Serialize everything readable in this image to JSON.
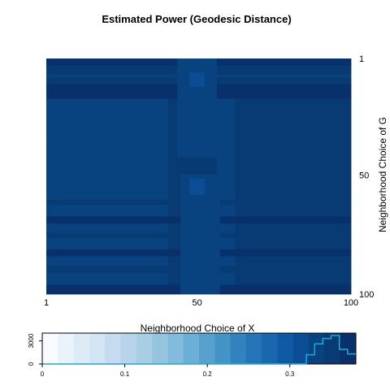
{
  "chart_data": {
    "type": "heatmap",
    "title": "Estimated Power (Geodesic Distance)",
    "xlabel": "Neighborhood Choice of X",
    "ylabel": "Neighborhood Choice of G",
    "x_ticks": [
      "1",
      "50",
      "100"
    ],
    "y_ticks": [
      "1",
      "50",
      "100"
    ],
    "x_range": [
      1,
      100
    ],
    "y_range": [
      1,
      100
    ],
    "y_axis_side": "right",
    "y_reversed": true,
    "colormap": "Blues",
    "color_range": [
      0,
      0.38
    ],
    "palette": [
      "#f7fbff",
      "#eaf3fb",
      "#deebf7",
      "#d3e4f3",
      "#c6dbef",
      "#b7d4ea",
      "#a8cee4",
      "#95c4df",
      "#82bbdb",
      "#6baed6",
      "#58a1cf",
      "#4594c7",
      "#3182bd",
      "#2474b7",
      "#1a67ad",
      "#0f5aa3",
      "#0b4d94",
      "#08427f",
      "#083a73",
      "#08306b"
    ],
    "base_value": 0.345,
    "row_bands": [
      {
        "rows": [
          1,
          3
        ],
        "value": 0.375
      },
      {
        "rows": [
          4,
          5
        ],
        "value": 0.352
      },
      {
        "rows": [
          6,
          7
        ],
        "value": 0.36
      },
      {
        "rows": [
          8,
          8
        ],
        "value": 0.325
      },
      {
        "rows": [
          9,
          11
        ],
        "value": 0.36
      },
      {
        "rows": [
          12,
          17
        ],
        "value": 0.37
      },
      {
        "rows": [
          61,
          62
        ],
        "value": 0.36
      },
      {
        "rows": [
          68,
          70
        ],
        "value": 0.365
      },
      {
        "rows": [
          75,
          76
        ],
        "value": 0.35
      },
      {
        "rows": [
          82,
          84
        ],
        "value": 0.37
      },
      {
        "rows": [
          89,
          91
        ],
        "value": 0.36
      },
      {
        "rows": [
          97,
          100
        ],
        "value": 0.365
      }
    ],
    "column_bands": [
      {
        "cols": [
          1,
          40
        ],
        "value": 0.338
      },
      {
        "cols": [
          57,
          62
        ],
        "value": 0.34
      },
      {
        "cols": [
          63,
          100
        ],
        "value": 0.35
      }
    ],
    "center_blocks": [
      {
        "cols": [
          44,
          56
        ],
        "rows": [
          1,
          42
        ],
        "value": 0.335
      },
      {
        "cols": [
          48,
          52
        ],
        "rows": [
          7,
          12
        ],
        "value": 0.31
      },
      {
        "cols": [
          45,
          57
        ],
        "rows": [
          50,
          100
        ],
        "value": 0.33
      },
      {
        "cols": [
          48,
          52
        ],
        "rows": [
          52,
          58
        ],
        "value": 0.305
      }
    ],
    "legend": {
      "ticks": [
        "0",
        "0.1",
        "0.2",
        "0.3"
      ],
      "tick_values": [
        0,
        0.1,
        0.2,
        0.3
      ],
      "count_ticks": [
        "0",
        "3000"
      ],
      "count_tick_values": [
        0,
        3000
      ],
      "count_range": [
        0,
        4000
      ],
      "histogram_color": "#1fa8d8",
      "histogram": [
        {
          "x": 0.0,
          "count": 0
        },
        {
          "x": 0.32,
          "count": 0
        },
        {
          "x": 0.32,
          "count": 1200
        },
        {
          "x": 0.33,
          "count": 1200
        },
        {
          "x": 0.33,
          "count": 2600
        },
        {
          "x": 0.34,
          "count": 2600
        },
        {
          "x": 0.34,
          "count": 3300
        },
        {
          "x": 0.35,
          "count": 3300
        },
        {
          "x": 0.35,
          "count": 3700
        },
        {
          "x": 0.36,
          "count": 3700
        },
        {
          "x": 0.36,
          "count": 1900
        },
        {
          "x": 0.37,
          "count": 1900
        },
        {
          "x": 0.37,
          "count": 1300
        },
        {
          "x": 0.38,
          "count": 1300
        }
      ]
    }
  }
}
